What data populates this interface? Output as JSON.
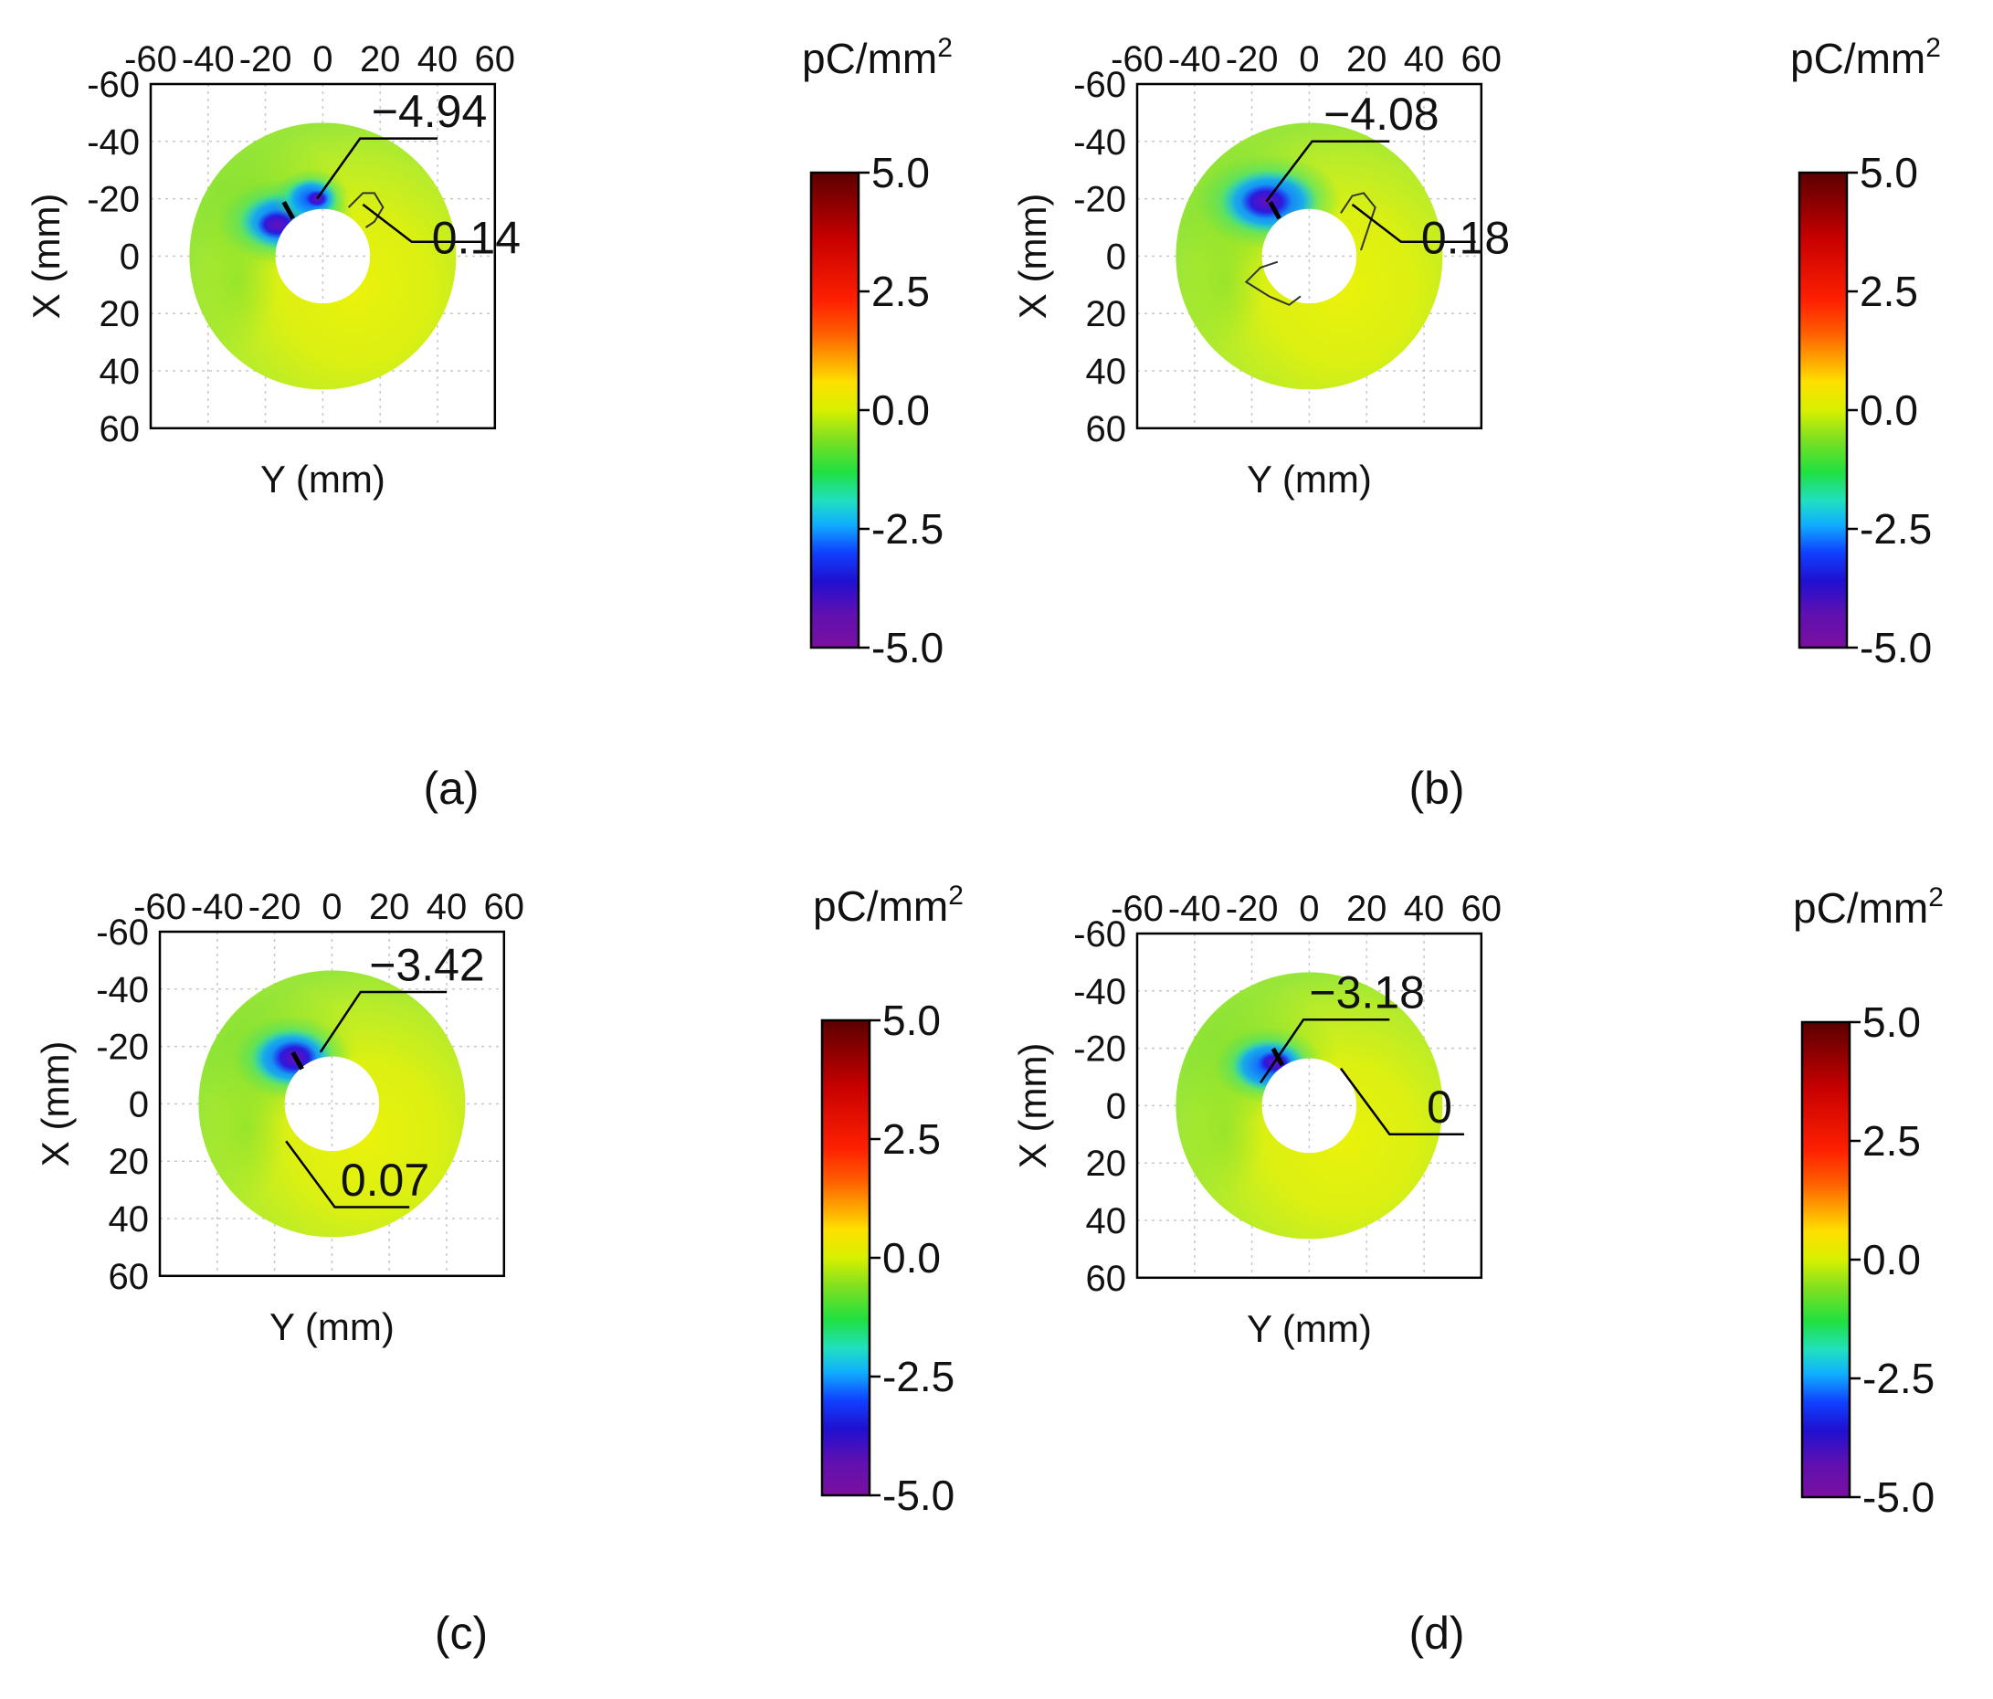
{
  "figure": {
    "colorbar": {
      "unit_base": "pC/mm",
      "unit_sup": "2",
      "ticks": [
        "5.0",
        "2.5",
        "0.0",
        "-2.5",
        "-5.0"
      ],
      "colors": [
        "#5a0000",
        "#c80000",
        "#ff2000",
        "#ff6000",
        "#ffa000",
        "#ffe000",
        "#d8f000",
        "#80e020",
        "#20e040",
        "#20e0c0",
        "#10b0ff",
        "#1040ff",
        "#2010d0",
        "#6010b0",
        "#7a10a0"
      ]
    }
  },
  "chart_data": [
    {
      "type": "heatmap",
      "panel_label": "(a)",
      "xlabel": "Y (mm)",
      "ylabel": "X (mm)",
      "x_ticks": [
        "-60",
        "-40",
        "-20",
        "0",
        "20",
        "40",
        "60"
      ],
      "y_ticks": [
        "-60",
        "-40",
        "-20",
        "0",
        "20",
        "40",
        "60"
      ],
      "xlim": [
        -60,
        60
      ],
      "ylim": [
        -60,
        60
      ],
      "colorbar_range": [
        -5.0,
        5.0
      ],
      "annotation_min": "−4.94",
      "annotation_max": "0.14",
      "min_value": -4.94,
      "max_value": 0.14
    },
    {
      "type": "heatmap",
      "panel_label": "(b)",
      "xlabel": "Y (mm)",
      "ylabel": "X (mm)",
      "x_ticks": [
        "-60",
        "-40",
        "-20",
        "0",
        "20",
        "40",
        "60"
      ],
      "y_ticks": [
        "-60",
        "-40",
        "-20",
        "0",
        "20",
        "40",
        "60"
      ],
      "xlim": [
        -60,
        60
      ],
      "ylim": [
        -60,
        60
      ],
      "colorbar_range": [
        -5.0,
        5.0
      ],
      "annotation_min": "−4.08",
      "annotation_max": "0.18",
      "min_value": -4.08,
      "max_value": 0.18
    },
    {
      "type": "heatmap",
      "panel_label": "(c)",
      "xlabel": "Y (mm)",
      "ylabel": "X (mm)",
      "x_ticks": [
        "-60",
        "-40",
        "-20",
        "0",
        "20",
        "40",
        "60"
      ],
      "y_ticks": [
        "-60",
        "-40",
        "-20",
        "0",
        "20",
        "40",
        "60"
      ],
      "xlim": [
        -60,
        60
      ],
      "ylim": [
        -60,
        60
      ],
      "colorbar_range": [
        -5.0,
        5.0
      ],
      "annotation_min": "−3.42",
      "annotation_max": "0.07",
      "min_value": -3.42,
      "max_value": 0.07
    },
    {
      "type": "heatmap",
      "panel_label": "(d)",
      "xlabel": "Y (mm)",
      "ylabel": "X (mm)",
      "x_ticks": [
        "-60",
        "-40",
        "-20",
        "0",
        "20",
        "40",
        "60"
      ],
      "y_ticks": [
        "-60",
        "-40",
        "-20",
        "0",
        "20",
        "40",
        "60"
      ],
      "xlim": [
        -60,
        60
      ],
      "ylim": [
        -60,
        60
      ],
      "colorbar_range": [
        -5.0,
        5.0
      ],
      "annotation_min": "−3.18",
      "annotation_max": "0",
      "min_value": -3.18,
      "max_value": 0
    }
  ]
}
